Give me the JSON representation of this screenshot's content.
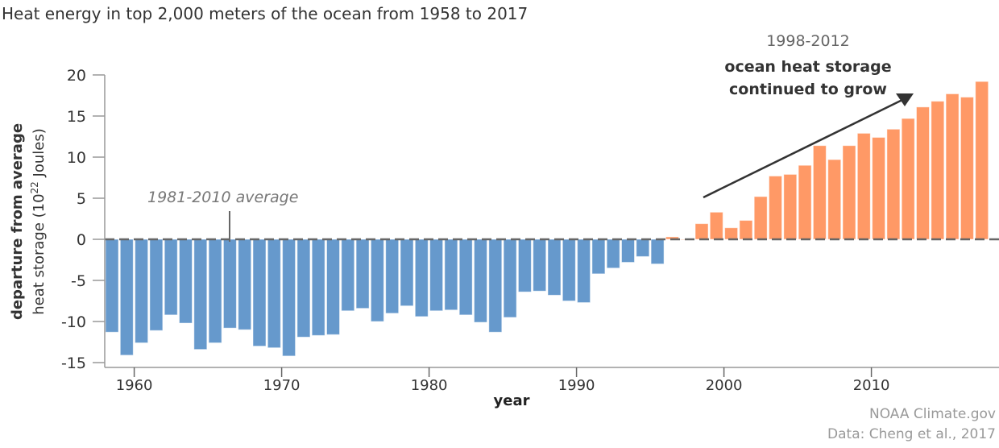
{
  "chart_data": {
    "type": "bar",
    "title": "Heat energy in top 2,000 meters of the ocean from 1958 to 2017",
    "xlabel": "year",
    "ylabel_line1": "departure from average",
    "ylabel_line2_pre": "heat storage (10",
    "ylabel_line2_sup": "22",
    "ylabel_line2_post": " Joules)",
    "ylim": [
      -15,
      20
    ],
    "yticks": [
      20,
      15,
      10,
      5,
      0,
      -5,
      -10,
      -15
    ],
    "ytick_labels": [
      "20",
      "15",
      "10",
      "5",
      "0",
      "-5",
      "-10",
      "-15"
    ],
    "xticks": [
      1960,
      1970,
      1980,
      1990,
      2000,
      2010
    ],
    "xtick_labels": [
      "1960",
      "1970",
      "1980",
      "1990",
      "2000",
      "2010"
    ],
    "years": [
      1958,
      1959,
      1960,
      1961,
      1962,
      1963,
      1964,
      1965,
      1966,
      1967,
      1968,
      1969,
      1970,
      1971,
      1972,
      1973,
      1974,
      1975,
      1976,
      1977,
      1978,
      1979,
      1980,
      1981,
      1982,
      1983,
      1984,
      1985,
      1986,
      1987,
      1988,
      1989,
      1990,
      1991,
      1992,
      1993,
      1994,
      1995,
      1996,
      1997,
      1998,
      1999,
      2000,
      2001,
      2002,
      2003,
      2004,
      2005,
      2006,
      2007,
      2008,
      2009,
      2010,
      2011,
      2012,
      2013,
      2014,
      2015,
      2016,
      2017
    ],
    "values": [
      -11.3,
      -14.1,
      -12.6,
      -11.1,
      -9.2,
      -10.2,
      -13.4,
      -12.6,
      -10.8,
      -11.0,
      -13.0,
      -13.2,
      -14.2,
      -11.9,
      -11.7,
      -11.6,
      -8.7,
      -8.4,
      -10.0,
      -9.0,
      -8.1,
      -9.4,
      -8.7,
      -8.6,
      -9.2,
      -10.1,
      -11.3,
      -9.5,
      -6.4,
      -6.3,
      -6.8,
      -7.5,
      -7.7,
      -4.2,
      -3.5,
      -2.8,
      -2.1,
      -3.0,
      0.3,
      0.0,
      1.9,
      3.3,
      1.4,
      2.3,
      5.2,
      7.7,
      7.9,
      9.0,
      11.4,
      9.7,
      11.4,
      12.9,
      12.4,
      13.4,
      14.7,
      16.1,
      16.8,
      17.7,
      17.3,
      19.2
    ],
    "colors": {
      "negative": "#6699cc",
      "positive": "#ff9966",
      "baseline": "#666666"
    },
    "annotations": {
      "baseline_label": "1981-2010 average",
      "period": "1998-2012",
      "trend_line1": "ocean heat storage",
      "trend_line2": "continued to grow"
    },
    "credits": [
      "NOAA Climate.gov",
      "Data: Cheng et al., 2017"
    ]
  }
}
